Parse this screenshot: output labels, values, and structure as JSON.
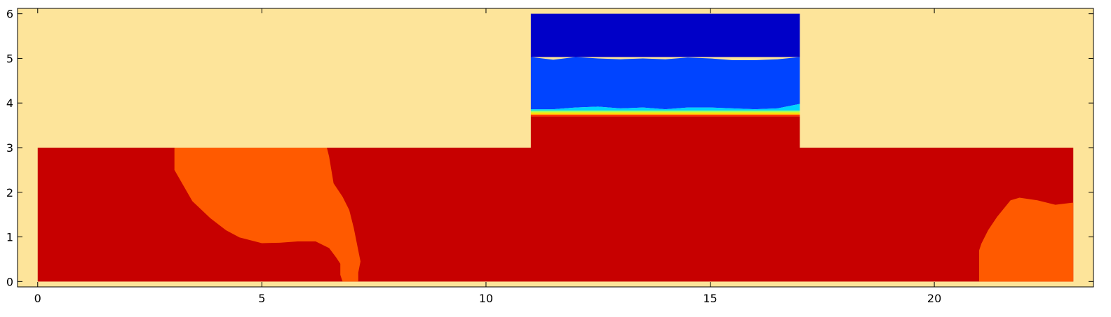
{
  "chart_data": {
    "type": "heatmap",
    "xlim": [
      -0.45,
      23.55
    ],
    "ylim": [
      -0.12,
      6.12
    ],
    "x_ticks": [
      0,
      5,
      10,
      15,
      20
    ],
    "y_ticks": [
      0,
      1,
      2,
      3,
      4,
      5,
      6
    ],
    "x_tick_labels": [
      "0",
      "5",
      "10",
      "15",
      "20"
    ],
    "y_tick_labels": [
      "0",
      "1",
      "2",
      "3",
      "4",
      "5",
      "6"
    ],
    "title": "",
    "xlabel": "",
    "ylabel": "",
    "grid": false,
    "colors": {
      "background": "#fde49a",
      "dark_red": "#c70000",
      "orange": "#ff5a00",
      "dark_blue": "#0000c8",
      "blue": "#0044ff",
      "cyan": "#00d4ff",
      "light_green": "#a0ff60",
      "yellow": "#ffe000",
      "red_orange": "#ff3300"
    },
    "regions": [
      {
        "name": "lower-domain-dark-red",
        "color_key": "dark_red",
        "points": [
          [
            0,
            0
          ],
          [
            23.1,
            0
          ],
          [
            23.1,
            3
          ],
          [
            17,
            3
          ],
          [
            17,
            3.7
          ],
          [
            11,
            3.7
          ],
          [
            11,
            3
          ],
          [
            0,
            3
          ]
        ]
      },
      {
        "name": "left-orange-zone",
        "color_key": "orange",
        "points": [
          [
            3.05,
            3
          ],
          [
            6.45,
            3
          ],
          [
            6.5,
            2.8
          ],
          [
            6.55,
            2.5
          ],
          [
            6.6,
            2.2
          ],
          [
            6.8,
            1.9
          ],
          [
            6.95,
            1.6
          ],
          [
            7.05,
            1.2
          ],
          [
            7.15,
            0.7
          ],
          [
            7.2,
            0.45
          ],
          [
            7.15,
            0.2
          ],
          [
            7.15,
            0
          ],
          [
            6.8,
            0
          ],
          [
            6.75,
            0.15
          ],
          [
            6.75,
            0.4
          ],
          [
            6.65,
            0.55
          ],
          [
            6.5,
            0.75
          ],
          [
            6.2,
            0.9
          ],
          [
            5.8,
            0.9
          ],
          [
            5.4,
            0.87
          ],
          [
            5.0,
            0.86
          ],
          [
            4.5,
            0.99
          ],
          [
            4.2,
            1.15
          ],
          [
            3.85,
            1.42
          ],
          [
            3.45,
            1.8
          ],
          [
            3.05,
            2.5
          ]
        ]
      },
      {
        "name": "right-orange-zone",
        "color_key": "orange",
        "points": [
          [
            21,
            0
          ],
          [
            23.1,
            0
          ],
          [
            23.1,
            1.77
          ],
          [
            22.7,
            1.72
          ],
          [
            22.3,
            1.82
          ],
          [
            21.9,
            1.88
          ],
          [
            21.7,
            1.82
          ],
          [
            21.4,
            1.45
          ],
          [
            21.2,
            1.15
          ],
          [
            21.05,
            0.85
          ],
          [
            21,
            0.7
          ]
        ]
      },
      {
        "name": "upper-dark-blue",
        "color_key": "dark_blue",
        "points": [
          [
            11,
            6
          ],
          [
            17,
            6
          ],
          [
            17,
            5.03
          ],
          [
            11,
            5.03
          ]
        ]
      },
      {
        "name": "upper-blue",
        "color_key": "blue",
        "points": [
          [
            11,
            5.03
          ],
          [
            11.5,
            4.97
          ],
          [
            12,
            5.03
          ],
          [
            12.5,
            5.0
          ],
          [
            13,
            4.98
          ],
          [
            13.5,
            5.0
          ],
          [
            14,
            4.98
          ],
          [
            14.5,
            5.02
          ],
          [
            15,
            5.0
          ],
          [
            15.5,
            4.96
          ],
          [
            16,
            4.96
          ],
          [
            16.5,
            4.98
          ],
          [
            17,
            5.03
          ],
          [
            17,
            3.98
          ],
          [
            16.5,
            3.88
          ],
          [
            16,
            3.86
          ],
          [
            15.5,
            3.88
          ],
          [
            15,
            3.9
          ],
          [
            14.5,
            3.9
          ],
          [
            14,
            3.86
          ],
          [
            13.5,
            3.9
          ],
          [
            13,
            3.88
          ],
          [
            12.5,
            3.92
          ],
          [
            12,
            3.9
          ],
          [
            11.5,
            3.86
          ],
          [
            11,
            3.86
          ]
        ]
      },
      {
        "name": "cyan-band",
        "color_key": "cyan",
        "points": [
          [
            11,
            3.86
          ],
          [
            11.5,
            3.86
          ],
          [
            12,
            3.9
          ],
          [
            12.5,
            3.92
          ],
          [
            13,
            3.88
          ],
          [
            13.5,
            3.9
          ],
          [
            14,
            3.86
          ],
          [
            14.5,
            3.9
          ],
          [
            15,
            3.9
          ],
          [
            15.5,
            3.88
          ],
          [
            16,
            3.86
          ],
          [
            16.5,
            3.88
          ],
          [
            17,
            3.98
          ],
          [
            17,
            3.83
          ],
          [
            11,
            3.83
          ]
        ]
      },
      {
        "name": "light-green-band",
        "color_key": "light_green",
        "points": [
          [
            11,
            3.83
          ],
          [
            17,
            3.83
          ],
          [
            17,
            3.79
          ],
          [
            11,
            3.79
          ]
        ]
      },
      {
        "name": "yellow-band",
        "color_key": "yellow",
        "points": [
          [
            11,
            3.79
          ],
          [
            17,
            3.79
          ],
          [
            17,
            3.74
          ],
          [
            11,
            3.74
          ]
        ]
      },
      {
        "name": "red-orange-band",
        "color_key": "red_orange",
        "points": [
          [
            11,
            3.74
          ],
          [
            17,
            3.74
          ],
          [
            17,
            3.7
          ],
          [
            11,
            3.7
          ]
        ]
      }
    ]
  }
}
